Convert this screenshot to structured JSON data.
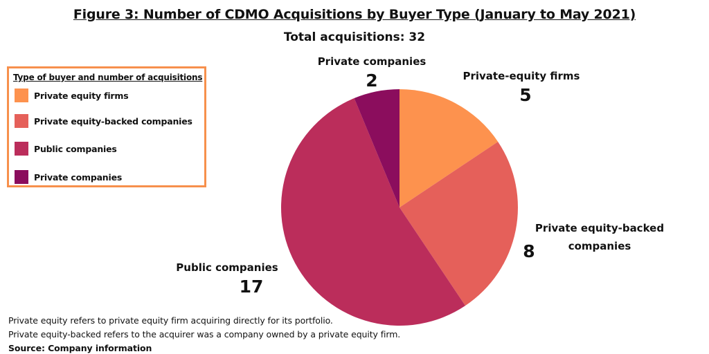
{
  "chart_data": {
    "type": "pie",
    "title": "Figure 3: Number of CDMO Acquisitions by Buyer Type (January to May 2021)",
    "subtitle": "Total acquisitions: 32",
    "legend_title": "Type of buyer and number of acquisitions",
    "legend_position": "left",
    "categories": [
      "Private equity firms",
      "Private equity-backed companies",
      "Public companies",
      "Private companies"
    ],
    "values": [
      5,
      8,
      17,
      2
    ],
    "colors": [
      "#fd924e",
      "#e5605a",
      "#bb2d5b",
      "#8b0d5d"
    ],
    "slice_labels": [
      {
        "name": "Private-equity firms",
        "value": "5"
      },
      {
        "name": "Private equity-backed companies",
        "value": "8"
      },
      {
        "name": "Public companies",
        "value": "17"
      },
      {
        "name": "Private companies",
        "value": "2"
      }
    ]
  },
  "notes": [
    "Private equity refers to private equity firm acquiring directly for its portfolio.",
    "Private equity-backed refers to the acquirer was a company owned by a private equity firm."
  ],
  "source": "Source: Company information"
}
